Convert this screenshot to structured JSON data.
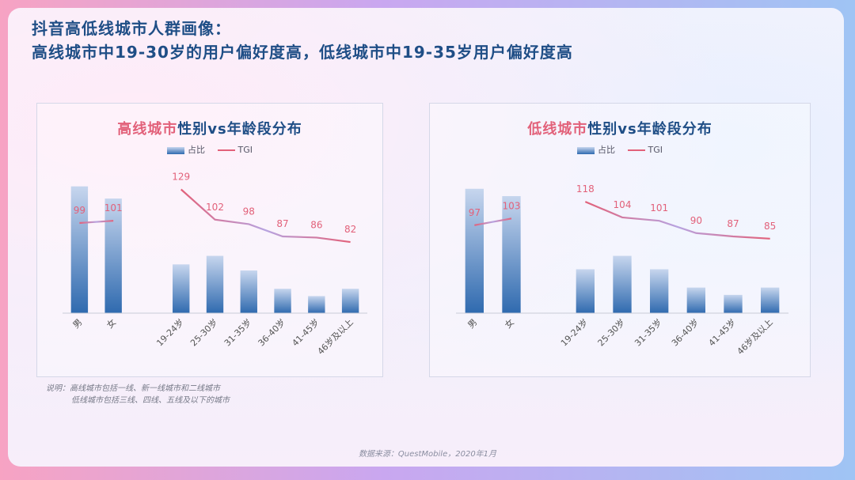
{
  "header": {
    "title_line1": "抖音高低线城市人群画像：",
    "title_line2": "高线城市中19-30岁的用户偏好度高，低线城市中19-35岁用户偏好度高"
  },
  "legend": {
    "bar_label": "占比",
    "line_label": "TGI"
  },
  "colors": {
    "title": "#1f4e86",
    "highlight": "#e2617a",
    "bar_top": "#c7d6ee",
    "bar_bottom": "#2f6aaf",
    "tgi_line": "#e2617a",
    "tgi_line_mid": "#b7a3e0"
  },
  "chart_data": [
    {
      "type": "bar",
      "title_highlight": "高线城市",
      "title_rest": "性别vs年龄段分布",
      "categories": [
        "男",
        "女",
        "19-24岁",
        "25-30岁",
        "31-35岁",
        "36-40岁",
        "41-45岁",
        "46岁及以上"
      ],
      "series": [
        {
          "name": "占比",
          "type": "bar",
          "values": [
            52,
            47,
            20,
            23.5,
            17.5,
            10,
            7,
            10
          ]
        },
        {
          "name": "TGI",
          "type": "line",
          "values": [
            99,
            101,
            129,
            102,
            98,
            87,
            86,
            82
          ]
        }
      ],
      "tgi_groups": [
        [
          0,
          1
        ],
        [
          2,
          3,
          4,
          5,
          6,
          7
        ]
      ],
      "ylim": [
        0,
        60
      ],
      "tgi_range": [
        75,
        135
      ]
    },
    {
      "type": "bar",
      "title_highlight": "低线城市",
      "title_rest": "性别vs年龄段分布",
      "categories": [
        "男",
        "女",
        "19-24岁",
        "25-30岁",
        "31-35岁",
        "36-40岁",
        "41-45岁",
        "46岁及以上"
      ],
      "series": [
        {
          "name": "占比",
          "type": "bar",
          "values": [
            51,
            48,
            18,
            23.5,
            18,
            10.5,
            7.5,
            10.5
          ]
        },
        {
          "name": "TGI",
          "type": "line",
          "values": [
            97,
            103,
            118,
            104,
            101,
            90,
            87,
            85
          ]
        }
      ],
      "tgi_groups": [
        [
          0,
          1
        ],
        [
          2,
          3,
          4,
          5,
          6,
          7
        ]
      ],
      "ylim": [
        0,
        60
      ],
      "tgi_range": [
        75,
        135
      ]
    }
  ],
  "note": {
    "line1": "说明：高线城市包括一线、新一线城市和二线城市",
    "line2": "低线城市包括三线、四线、五线及以下的城市"
  },
  "source": "数据来源：QuestMobile，2020年1月"
}
